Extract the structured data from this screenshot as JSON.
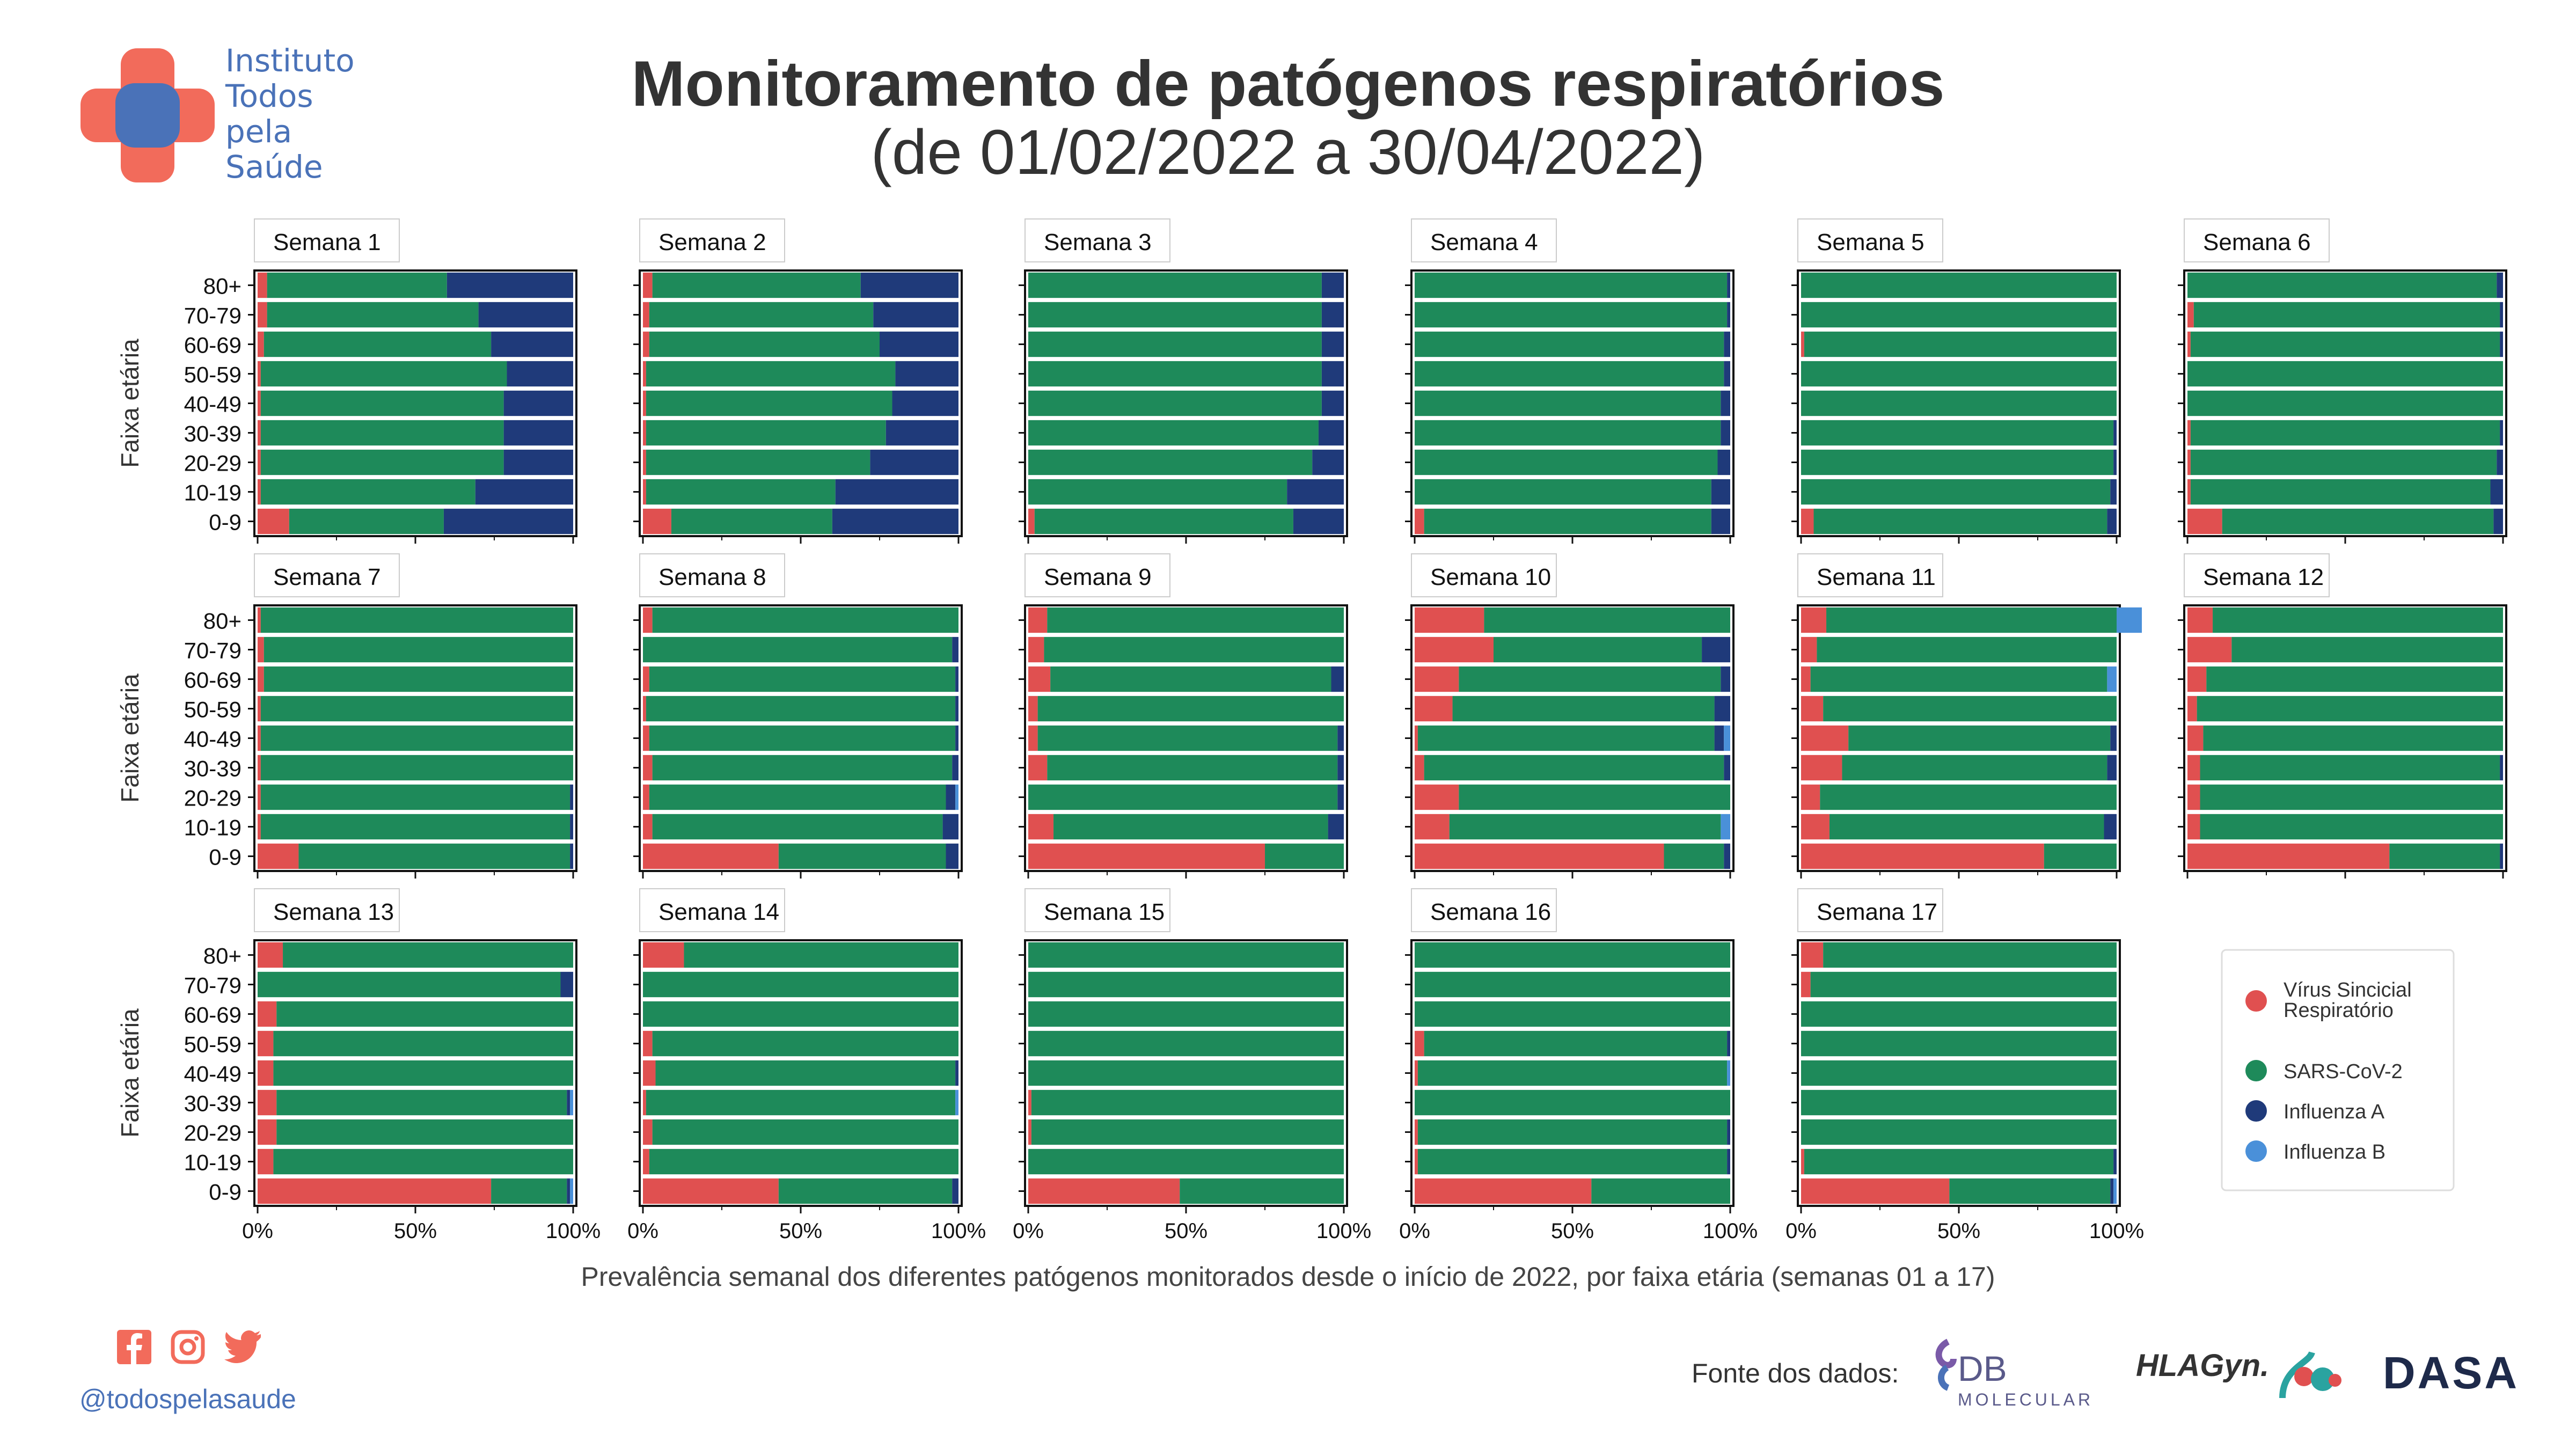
{
  "header": {
    "title": "Monitoramento de patógenos respiratórios",
    "subtitle": "(de 01/02/2022 a 30/04/2022)"
  },
  "logo": {
    "line1": "Instituto",
    "line2": "Todos",
    "line3": "pela",
    "line4": "Saúde"
  },
  "colors": {
    "vsr": "#e05050",
    "sars": "#1e8a5a",
    "fluA": "#1f3a7a",
    "fluB": "#4a90d9",
    "logo_blue": "#4a72b8",
    "logo_red": "#f26b5b"
  },
  "footer": {
    "caption": "Prevalência semanal dos diferentes patógenos monitorados desde o início de 2022, por faixa etária (semanas 01 a 17)",
    "handle": "@todospelasaude",
    "source_label": "Fonte dos dados:",
    "sources": [
      "DB",
      "MOLECULAR",
      "HLAGyn.",
      "DASA"
    ]
  },
  "social_icons": [
    "facebook-icon",
    "instagram-icon",
    "twitter-icon"
  ],
  "chart_data": {
    "type": "bar",
    "orientation": "horizontal-stacked-100",
    "ylabel": "Faixa etária",
    "categories": [
      "80+",
      "70-79",
      "60-69",
      "50-59",
      "40-49",
      "30-39",
      "20-29",
      "10-19",
      "0-9"
    ],
    "xticks": [
      "0%",
      "50%",
      "100%"
    ],
    "xlim": [
      0,
      100
    ],
    "legend": {
      "position": "right",
      "entries": [
        {
          "name": "Vírus Sincicial Respiratório",
          "key": "vsr"
        },
        {
          "name": "SARS-CoV-2",
          "key": "sars"
        },
        {
          "name": "Influenza A",
          "key": "fluA"
        },
        {
          "name": "Influenza B",
          "key": "fluB"
        }
      ]
    },
    "series_keys": [
      "vsr",
      "sars",
      "fluA",
      "fluB"
    ],
    "panels": [
      {
        "title": "Semana 1",
        "values": [
          [
            3,
            57,
            40,
            0
          ],
          [
            3,
            67,
            30,
            0
          ],
          [
            2,
            72,
            26,
            0
          ],
          [
            1,
            78,
            21,
            0
          ],
          [
            1,
            77,
            22,
            0
          ],
          [
            1,
            77,
            22,
            0
          ],
          [
            1,
            77,
            22,
            0
          ],
          [
            1,
            68,
            31,
            0
          ],
          [
            10,
            49,
            41,
            0
          ]
        ]
      },
      {
        "title": "Semana 2",
        "values": [
          [
            3,
            66,
            31,
            0
          ],
          [
            2,
            71,
            27,
            0
          ],
          [
            2,
            73,
            25,
            0
          ],
          [
            1,
            79,
            20,
            0
          ],
          [
            1,
            78,
            21,
            0
          ],
          [
            1,
            76,
            23,
            0
          ],
          [
            1,
            71,
            28,
            0
          ],
          [
            1,
            60,
            39,
            0
          ],
          [
            9,
            51,
            40,
            0
          ]
        ]
      },
      {
        "title": "Semana 3",
        "values": [
          [
            0,
            93,
            7,
            0
          ],
          [
            0,
            93,
            7,
            0
          ],
          [
            0,
            93,
            7,
            0
          ],
          [
            0,
            93,
            7,
            0
          ],
          [
            0,
            93,
            7,
            0
          ],
          [
            0,
            92,
            8,
            0
          ],
          [
            0,
            90,
            10,
            0
          ],
          [
            0,
            82,
            18,
            0
          ],
          [
            2,
            82,
            16,
            0
          ]
        ]
      },
      {
        "title": "Semana 4",
        "values": [
          [
            0,
            99,
            1,
            0
          ],
          [
            0,
            99,
            1,
            0
          ],
          [
            0,
            98,
            2,
            0
          ],
          [
            0,
            98,
            2,
            0
          ],
          [
            0,
            97,
            3,
            0
          ],
          [
            0,
            97,
            3,
            0
          ],
          [
            0,
            96,
            4,
            0
          ],
          [
            0,
            94,
            6,
            0
          ],
          [
            3,
            91,
            6,
            0
          ]
        ]
      },
      {
        "title": "Semana 5",
        "values": [
          [
            0,
            100,
            0,
            0
          ],
          [
            0,
            100,
            0,
            0
          ],
          [
            1,
            99,
            0,
            0
          ],
          [
            0,
            100,
            0,
            0
          ],
          [
            0,
            100,
            0,
            0
          ],
          [
            0,
            99,
            1,
            0
          ],
          [
            0,
            99,
            1,
            0
          ],
          [
            0,
            98,
            2,
            0
          ],
          [
            4,
            93,
            3,
            0
          ]
        ]
      },
      {
        "title": "Semana 6",
        "values": [
          [
            0,
            98,
            2,
            0
          ],
          [
            2,
            97,
            1,
            0
          ],
          [
            1,
            98,
            1,
            0
          ],
          [
            0,
            100,
            0,
            0
          ],
          [
            0,
            100,
            0,
            0
          ],
          [
            1,
            98,
            1,
            0
          ],
          [
            1,
            97,
            2,
            0
          ],
          [
            1,
            95,
            4,
            0
          ],
          [
            11,
            86,
            3,
            0
          ]
        ]
      },
      {
        "title": "Semana 7",
        "values": [
          [
            1,
            99,
            0,
            0
          ],
          [
            2,
            98,
            0,
            0
          ],
          [
            2,
            98,
            0,
            0
          ],
          [
            1,
            99,
            0,
            0
          ],
          [
            1,
            99,
            0,
            0
          ],
          [
            1,
            99,
            0,
            0
          ],
          [
            1,
            98,
            1,
            0
          ],
          [
            1,
            98,
            1,
            0
          ],
          [
            13,
            86,
            1,
            0
          ]
        ]
      },
      {
        "title": "Semana 8",
        "values": [
          [
            3,
            97,
            0,
            0
          ],
          [
            0,
            98,
            2,
            0
          ],
          [
            2,
            97,
            1,
            0
          ],
          [
            1,
            98,
            1,
            0
          ],
          [
            2,
            97,
            1,
            0
          ],
          [
            3,
            95,
            2,
            0
          ],
          [
            2,
            94,
            3,
            1
          ],
          [
            3,
            92,
            5,
            0
          ],
          [
            43,
            53,
            4,
            0
          ]
        ]
      },
      {
        "title": "Semana 9",
        "values": [
          [
            6,
            94,
            0,
            0
          ],
          [
            5,
            95,
            0,
            0
          ],
          [
            7,
            89,
            4,
            0
          ],
          [
            3,
            97,
            0,
            0
          ],
          [
            3,
            95,
            2,
            0
          ],
          [
            6,
            92,
            2,
            0
          ],
          [
            0,
            98,
            2,
            0
          ],
          [
            8,
            87,
            5,
            0
          ],
          [
            75,
            25,
            0,
            0
          ]
        ]
      },
      {
        "title": "Semana 10",
        "values": [
          [
            22,
            78,
            0,
            0
          ],
          [
            25,
            66,
            9,
            0
          ],
          [
            14,
            83,
            3,
            0
          ],
          [
            12,
            83,
            5,
            0
          ],
          [
            1,
            94,
            3,
            2
          ],
          [
            3,
            95,
            2,
            0
          ],
          [
            14,
            86,
            0,
            0
          ],
          [
            11,
            86,
            0,
            3
          ],
          [
            79,
            19,
            2,
            0
          ]
        ]
      },
      {
        "title": "Semana 11",
        "values": [
          [
            8,
            92,
            0,
            8
          ],
          [
            5,
            95,
            0,
            0
          ],
          [
            3,
            94,
            0,
            3
          ],
          [
            7,
            93,
            0,
            0
          ],
          [
            15,
            83,
            2,
            0
          ],
          [
            13,
            84,
            3,
            0
          ],
          [
            6,
            94,
            0,
            0
          ],
          [
            9,
            87,
            4,
            0
          ],
          [
            77,
            23,
            0,
            0
          ]
        ]
      },
      {
        "title": "Semana 12",
        "values": [
          [
            8,
            92,
            0,
            0
          ],
          [
            14,
            86,
            0,
            0
          ],
          [
            6,
            94,
            0,
            0
          ],
          [
            3,
            97,
            0,
            0
          ],
          [
            5,
            95,
            0,
            0
          ],
          [
            4,
            95,
            1,
            0
          ],
          [
            4,
            96,
            0,
            0
          ],
          [
            4,
            96,
            0,
            0
          ],
          [
            64,
            35,
            1,
            0
          ]
        ]
      },
      {
        "title": "Semana 13",
        "values": [
          [
            8,
            92,
            0,
            0
          ],
          [
            0,
            96,
            4,
            0
          ],
          [
            6,
            94,
            0,
            0
          ],
          [
            5,
            95,
            0,
            0
          ],
          [
            5,
            95,
            0,
            0
          ],
          [
            6,
            92,
            1,
            1
          ],
          [
            6,
            94,
            0,
            0
          ],
          [
            5,
            95,
            0,
            0
          ],
          [
            74,
            24,
            1,
            1
          ]
        ]
      },
      {
        "title": "Semana 14",
        "values": [
          [
            13,
            87,
            0,
            0
          ],
          [
            0,
            100,
            0,
            0
          ],
          [
            0,
            100,
            0,
            0
          ],
          [
            3,
            97,
            0,
            0
          ],
          [
            4,
            95,
            1,
            0
          ],
          [
            1,
            98,
            0,
            1
          ],
          [
            3,
            97,
            0,
            0
          ],
          [
            2,
            98,
            0,
            0
          ],
          [
            43,
            55,
            2,
            0
          ]
        ]
      },
      {
        "title": "Semana 15",
        "values": [
          [
            0,
            100,
            0,
            0
          ],
          [
            0,
            100,
            0,
            0
          ],
          [
            0,
            100,
            0,
            0
          ],
          [
            0,
            100,
            0,
            0
          ],
          [
            0,
            100,
            0,
            0
          ],
          [
            1,
            99,
            0,
            0
          ],
          [
            1,
            99,
            0,
            0
          ],
          [
            0,
            100,
            0,
            0
          ],
          [
            48,
            52,
            0,
            0
          ]
        ]
      },
      {
        "title": "Semana 16",
        "values": [
          [
            0,
            100,
            0,
            0
          ],
          [
            0,
            100,
            0,
            0
          ],
          [
            0,
            100,
            0,
            0
          ],
          [
            3,
            96,
            1,
            0
          ],
          [
            1,
            98,
            0,
            1
          ],
          [
            0,
            100,
            0,
            0
          ],
          [
            1,
            98,
            1,
            0
          ],
          [
            1,
            98,
            1,
            0
          ],
          [
            56,
            44,
            0,
            0
          ]
        ]
      },
      {
        "title": "Semana 17",
        "values": [
          [
            7,
            93,
            0,
            0
          ],
          [
            3,
            97,
            0,
            0
          ],
          [
            0,
            100,
            0,
            0
          ],
          [
            0,
            100,
            0,
            0
          ],
          [
            0,
            100,
            0,
            0
          ],
          [
            0,
            100,
            0,
            0
          ],
          [
            0,
            100,
            0,
            0
          ],
          [
            1,
            98,
            1,
            0
          ],
          [
            47,
            51,
            1,
            1
          ]
        ]
      }
    ]
  }
}
